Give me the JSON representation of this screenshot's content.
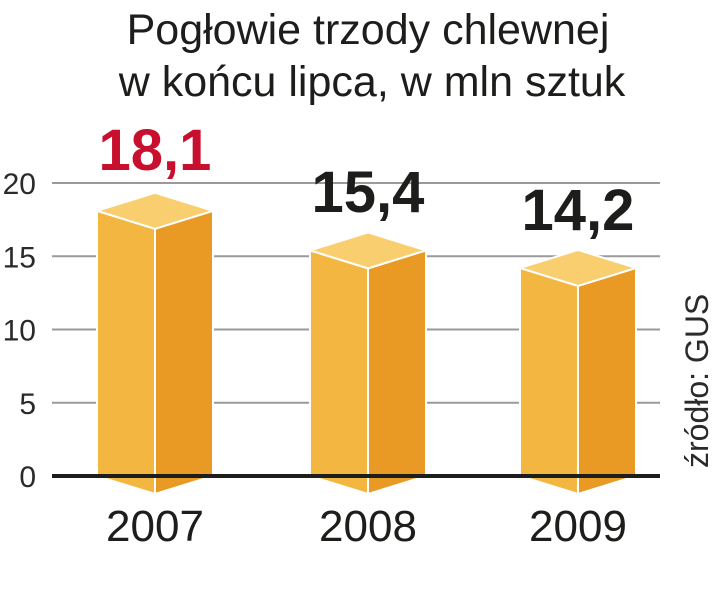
{
  "chart_data": {
    "type": "bar",
    "title": "Pogłowie trzody chlewnej",
    "subtitle": "w końcu lipca, w mln sztuk",
    "categories": [
      "2007",
      "2008",
      "2009"
    ],
    "values": [
      18.1,
      15.4,
      14.2
    ],
    "value_labels": [
      "18,1",
      "15,4",
      "14,2"
    ],
    "yticks": [
      "0",
      "5",
      "10",
      "15",
      "20"
    ],
    "ylim": [
      0,
      20
    ],
    "grid": true,
    "source": "źródło: GUS",
    "colors": {
      "bar_front": "#f3b640",
      "bar_side": "#e89a24",
      "bar_top": "#f9ce6e",
      "highlight_label": "#c8102e",
      "label": "#1d1d1b",
      "grid": "#9a9a9a",
      "axis": "#1d1d1b"
    }
  }
}
